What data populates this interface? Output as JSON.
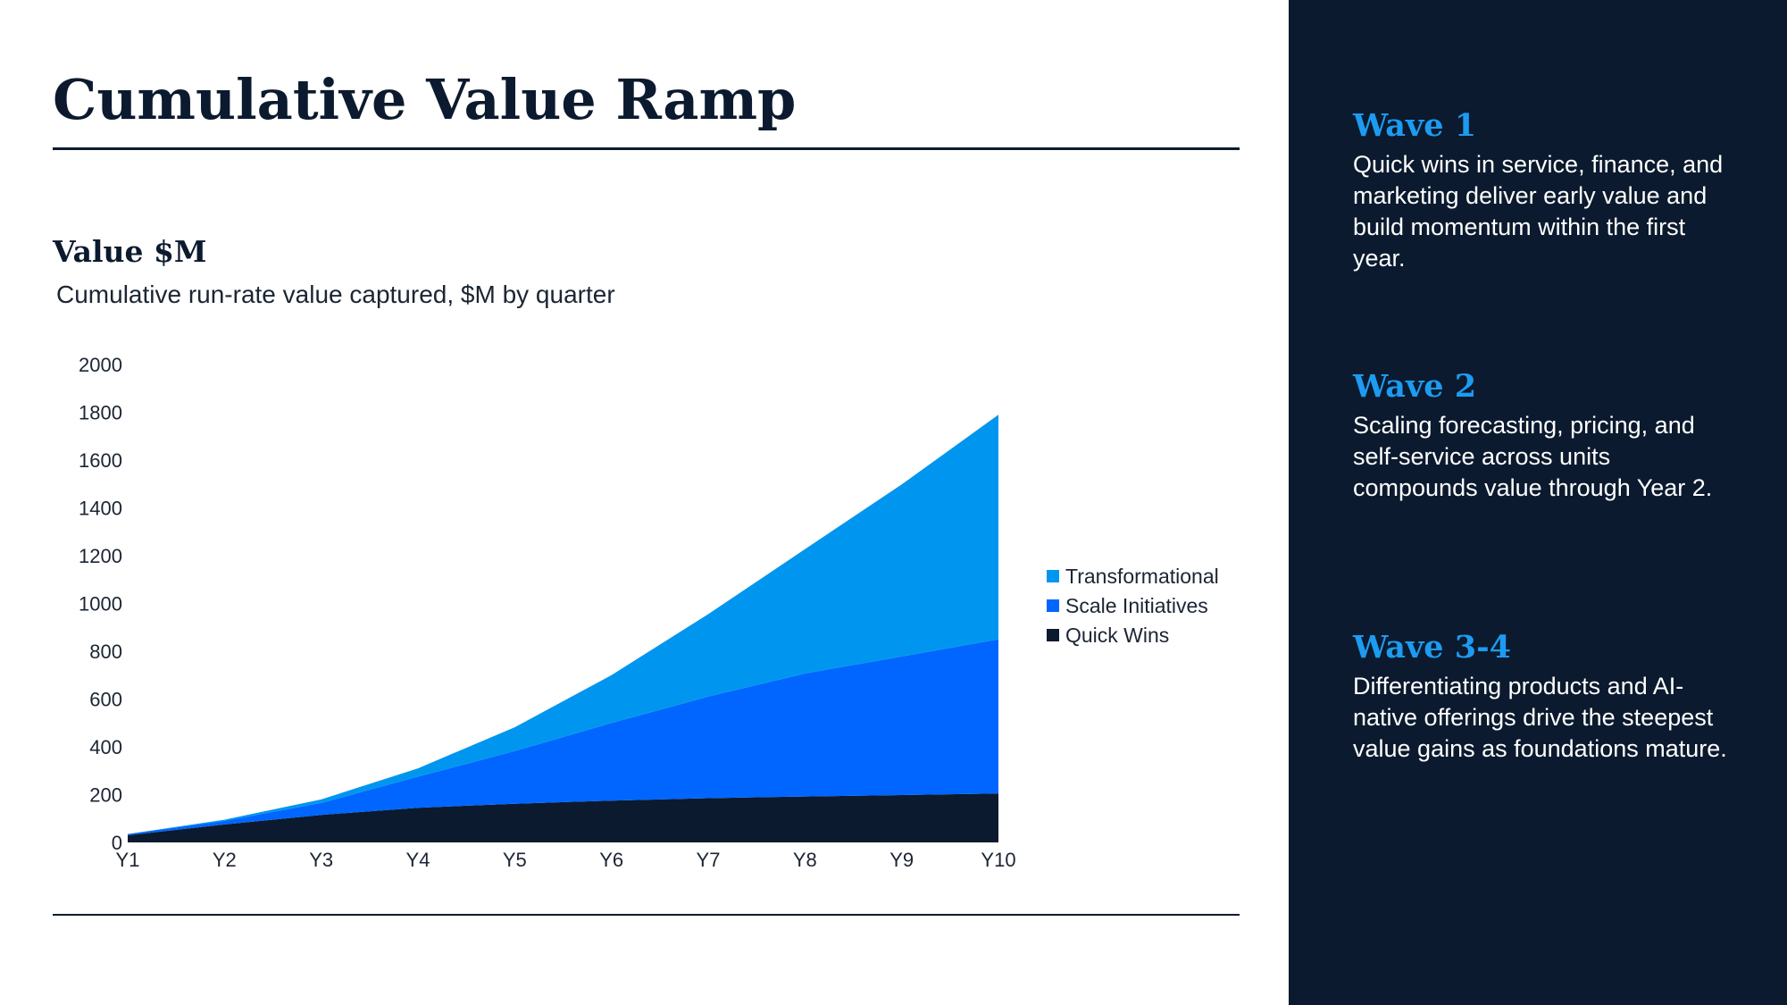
{
  "page": {
    "title": "Cumulative Value Ramp"
  },
  "chart_data": {
    "type": "area",
    "stacked": true,
    "title": "Value $M",
    "subtitle": "Cumulative run-rate value captured, $M by quarter",
    "xlabel": "",
    "ylabel": "",
    "categories": [
      "Y1",
      "Y2",
      "Y3",
      "Y4",
      "Y5",
      "Y6",
      "Y7",
      "Y8",
      "Y9",
      "Y10"
    ],
    "ylim": [
      0,
      2000
    ],
    "yticks": [
      0,
      200,
      400,
      600,
      800,
      1000,
      1200,
      1400,
      1600,
      1800,
      2000
    ],
    "grid": false,
    "legend_position": "right",
    "series": [
      {
        "name": "Quick Wins",
        "color": "#0b1a2e",
        "values": [
          30,
          75,
          115,
          145,
          162,
          175,
          185,
          192,
          198,
          205
        ]
      },
      {
        "name": "Scale Initiatives",
        "color": "#0066ff",
        "values": [
          5,
          15,
          50,
          130,
          220,
          325,
          425,
          515,
          580,
          645
        ]
      },
      {
        "name": "Transformational",
        "color": "#0096ef",
        "values": [
          0,
          5,
          15,
          35,
          100,
          200,
          345,
          520,
          720,
          940
        ]
      }
    ],
    "legend_order": [
      "Transformational",
      "Scale Initiatives",
      "Quick Wins"
    ]
  },
  "sidebar": {
    "waves": [
      {
        "title": "Wave 1",
        "body": "Quick wins in service, finance, and marketing deliver early value and build momentum within the first year."
      },
      {
        "title": "Wave 2",
        "body": "Scaling forecasting, pricing, and self-service across units compounds value through Year 2."
      },
      {
        "title": "Wave 3-4",
        "body": "Differentiating products and AI-native offerings drive the steepest value gains as foundations mature."
      }
    ]
  }
}
